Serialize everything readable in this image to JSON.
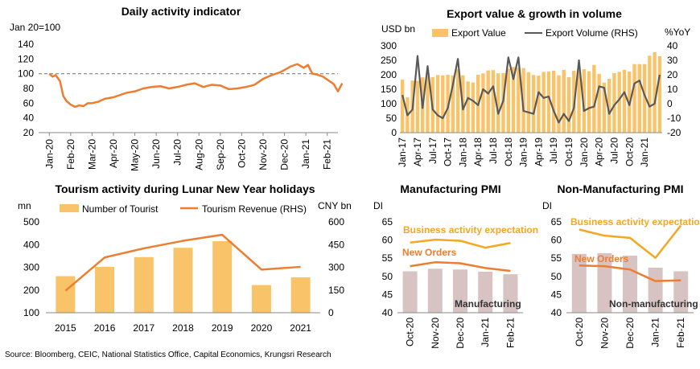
{
  "source": "Source: Bloomberg, CEIC, National Statistics Office, Capital Economics, Krungsri Research",
  "colors": {
    "orange": "#ED7D31",
    "gold": "#F5A623",
    "bar": "#F9C36A",
    "pmibar": "#D8C3C3",
    "line": "#595959",
    "dash": "#808080"
  },
  "chart_data": [
    {
      "type": "line",
      "title": "Daily activity indicator",
      "ylabel": "Jan 20=100",
      "ylim": [
        20,
        140
      ],
      "yticks": [
        "20",
        "40",
        "60",
        "80",
        "100",
        "120",
        "140"
      ],
      "xticks": [
        "Jan-20",
        "Feb-20",
        "Mar-20",
        "Apr-20",
        "May-20",
        "Jun-20",
        "Jul-20",
        "Aug-20",
        "Sep-20",
        "Oct-20",
        "Nov-20",
        "Dec-20",
        "Jan-21",
        "Feb-21"
      ],
      "reference_line": 100,
      "series": [
        {
          "x": [
            0,
            0.15,
            0.3,
            0.5,
            0.65,
            0.8,
            1.0,
            1.2,
            1.4,
            1.6,
            1.8,
            2.0,
            2.3,
            2.6,
            3.0,
            3.3,
            3.6,
            4.0,
            4.4,
            4.8,
            5.2,
            5.6,
            6.0,
            6.4,
            6.8,
            7.2,
            7.6,
            8.0,
            8.4,
            8.8,
            9.2,
            9.6,
            10.0,
            10.4,
            10.8,
            11.0,
            11.3,
            11.6,
            11.9,
            12.1,
            12.3,
            12.5,
            12.8,
            13.1,
            13.3,
            13.5,
            13.7
          ],
          "y": [
            100,
            96,
            98,
            90,
            70,
            63,
            58,
            55,
            57,
            56,
            60,
            60,
            62,
            66,
            68,
            71,
            74,
            76,
            80,
            82,
            83,
            80,
            82,
            85,
            87,
            82,
            85,
            84,
            79,
            80,
            82,
            85,
            93,
            98,
            102,
            105,
            110,
            113,
            108,
            112,
            100,
            99,
            96,
            90,
            86,
            76,
            87
          ]
        }
      ]
    },
    {
      "type": "bar+line",
      "title": "Export value & growth in volume",
      "ylabel_left": "USD bn",
      "ylabel_right": "%YoY",
      "ylim_left": [
        0,
        300
      ],
      "ylim_right": [
        -20,
        40
      ],
      "yticks_left": [
        "0",
        "50",
        "100",
        "150",
        "200",
        "250",
        "300"
      ],
      "yticks_right": [
        "-20",
        "-10",
        "0",
        "10",
        "20",
        "30",
        "40"
      ],
      "xticks": [
        "Jan-17",
        "Apr-17",
        "Jul-17",
        "Oct-17",
        "Jan-18",
        "Apr-18",
        "Jul-18",
        "Oct-18",
        "Jan-19",
        "Apr-19",
        "Jul-19",
        "Oct-19",
        "Jan-20",
        "Apr-20",
        "Jul-20",
        "Oct-20",
        "Jan-21"
      ],
      "series": [
        {
          "name": "Export Value",
          "values": [
            183,
            122,
            180,
            179,
            191,
            196,
            192,
            199,
            198,
            200,
            198,
            219,
            198,
            177,
            173,
            200,
            205,
            215,
            216,
            205,
            206,
            221,
            227,
            224,
            223,
            209,
            199,
            197,
            210,
            211,
            214,
            198,
            217,
            192,
            214,
            214,
            219,
            212,
            234,
            203,
            173,
            186,
            206,
            210,
            217,
            211,
            237,
            237,
            237,
            266,
            278,
            264
          ]
        },
        {
          "name": "Export Volume (RHS)",
          "values": [
            6,
            -8,
            -4,
            33,
            -3,
            26,
            -4,
            -8,
            -10,
            -3,
            13,
            31,
            -4,
            4,
            2,
            -1,
            10,
            7,
            12,
            -7,
            2,
            32,
            17,
            32,
            -5,
            -6,
            -7,
            8,
            4,
            5,
            -5,
            -13,
            -7,
            -12,
            -3,
            30,
            -5,
            -3,
            -2,
            12,
            11,
            -7,
            -1,
            3,
            8,
            -1,
            14,
            16,
            6,
            -2,
            0,
            20
          ]
        }
      ]
    },
    {
      "type": "bar+line",
      "title": "Tourism activity during Lunar New Year holidays",
      "ylabel_left": "mn",
      "ylabel_right": "CNY bn",
      "ylim_left": [
        100,
        500
      ],
      "ylim_right": [
        0,
        600
      ],
      "yticks_left": [
        "100",
        "200",
        "300",
        "400",
        "500"
      ],
      "yticks_right": [
        "0",
        "150",
        "300",
        "450",
        "600"
      ],
      "categories": [
        "2015",
        "2016",
        "2017",
        "2018",
        "2019",
        "2020",
        "2021"
      ],
      "series": [
        {
          "name": "Number of Tourist",
          "values": [
            261,
            302,
            345,
            386,
            415,
            222,
            256
          ]
        },
        {
          "name": "Tourism Revenue (RHS)",
          "values": [
            145,
            365,
            425,
            475,
            515,
            285,
            303
          ]
        }
      ]
    },
    {
      "type": "bar+line",
      "title": "Manufacturing PMI",
      "ylabel": "DI",
      "ylim": [
        40,
        65
      ],
      "yticks": [
        "40",
        "45",
        "50",
        "55",
        "60",
        "65"
      ],
      "categories": [
        "Oct-20",
        "Nov-20",
        "Dec-20",
        "Jan-21",
        "Feb-21"
      ],
      "series": [
        {
          "name": "Manufacturing",
          "values": [
            51.4,
            52.1,
            51.9,
            51.3,
            50.6
          ]
        },
        {
          "name": "Business activity expectation",
          "values": [
            59.3,
            60.1,
            59.8,
            57.9,
            59.2
          ]
        },
        {
          "name": "New Orders",
          "values": [
            52.8,
            53.9,
            53.6,
            52.3,
            51.5
          ]
        }
      ]
    },
    {
      "type": "bar+line",
      "title": "Non-Manufacturing PMI",
      "ylabel": "DI",
      "ylim": [
        40,
        65
      ],
      "yticks": [
        "40",
        "45",
        "50",
        "55",
        "60",
        "65"
      ],
      "categories": [
        "Oct-20",
        "Nov-20",
        "Dec-20",
        "Jan-21",
        "Feb-21"
      ],
      "series": [
        {
          "name": "Non-manufacturing",
          "values": [
            56.2,
            56.4,
            55.7,
            52.4,
            51.4
          ]
        },
        {
          "name": "Business activity expectation",
          "values": [
            62.9,
            61.2,
            60.6,
            55.1,
            64.0
          ]
        },
        {
          "name": "New Orders",
          "values": [
            53.0,
            52.8,
            51.9,
            48.7,
            48.9
          ]
        }
      ]
    }
  ]
}
